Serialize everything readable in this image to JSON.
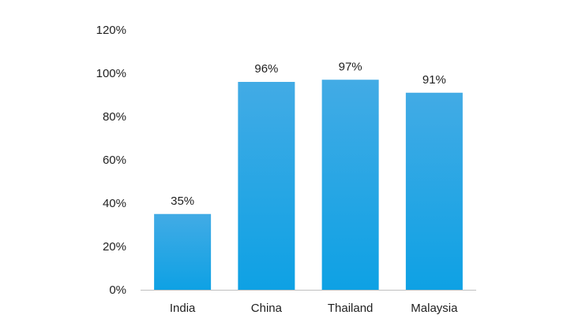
{
  "chart_data": {
    "type": "bar",
    "categories": [
      "India",
      "China",
      "Thailand",
      "Malaysia"
    ],
    "values": [
      35,
      96,
      97,
      91
    ],
    "data_labels": [
      "35%",
      "96%",
      "97%",
      "91%"
    ],
    "ylim": [
      0,
      120
    ],
    "y_ticks": [
      0,
      20,
      40,
      60,
      80,
      100,
      120
    ],
    "y_tick_labels": [
      "0%",
      "20%",
      "40%",
      "60%",
      "80%",
      "100%",
      "120%"
    ],
    "title": "",
    "xlabel": "",
    "ylabel": "",
    "grid": false,
    "legend": "none",
    "colors": {
      "bar_top": "#42abe5",
      "bar_bottom": "#0ea1e4",
      "axis": "#bfbfbf",
      "text": "#1f1f1f"
    }
  }
}
